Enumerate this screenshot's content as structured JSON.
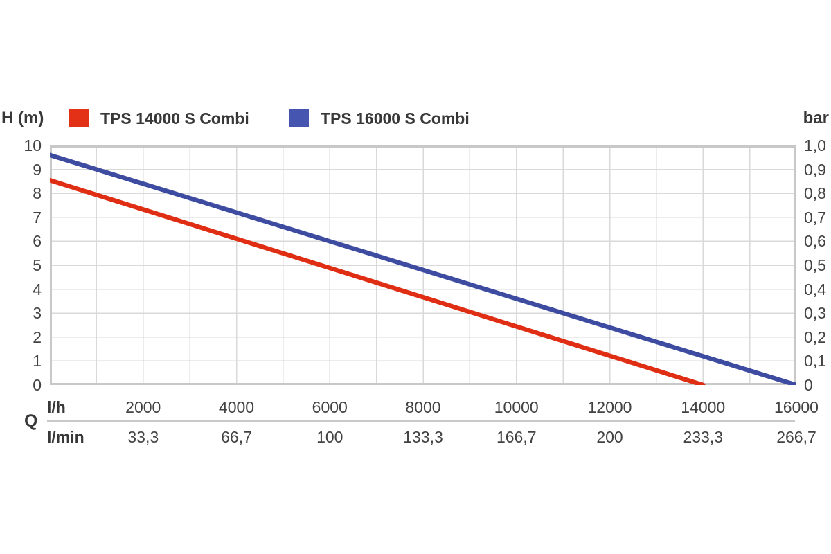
{
  "chart_data": {
    "type": "line",
    "title": "",
    "grid": {
      "on": true,
      "x_step": 1000,
      "y_step": 1
    },
    "legend_position": "top",
    "xlim": [
      0,
      16000
    ],
    "left_axis": {
      "title": "H (m)",
      "lim": [
        0,
        10
      ],
      "labels": [
        "10",
        "9",
        "8",
        "7",
        "6",
        "5",
        "4",
        "3",
        "2",
        "1",
        "0"
      ]
    },
    "right_axis": {
      "title": "bar",
      "lim": [
        0,
        1.0
      ],
      "labels": [
        "1,0",
        "0,9",
        "0,8",
        "0,7",
        "0,6",
        "0,5",
        "0,4",
        "0,3",
        "0,2",
        "0,1",
        "0"
      ]
    },
    "x_axis": {
      "group_label": "Q",
      "tick_values": [
        2000,
        4000,
        6000,
        8000,
        10000,
        12000,
        14000,
        16000
      ],
      "rows": [
        {
          "unit": "l/h",
          "labels": [
            "2000",
            "4000",
            "6000",
            "8000",
            "10000",
            "12000",
            "14000",
            "16000"
          ]
        },
        {
          "unit": "l/min",
          "labels": [
            "33,3",
            "66,7",
            "100",
            "133,3",
            "166,7",
            "200",
            "233,3",
            "266,7"
          ]
        }
      ]
    },
    "series": [
      {
        "name": "TPS 14000 S Combi",
        "color": "#df2e14",
        "swatch_color": "#e23117",
        "points": [
          [
            0,
            8.55
          ],
          [
            14000,
            0
          ]
        ]
      },
      {
        "name": "TPS 16000 S Combi",
        "color": "#3d4ba0",
        "swatch_color": "#4656b0",
        "points": [
          [
            0,
            9.6
          ],
          [
            16000,
            0
          ]
        ]
      }
    ],
    "colors": {
      "grid": "#d9d9d9",
      "border": "#c8c8c8",
      "tick_text": "#424242"
    }
  }
}
